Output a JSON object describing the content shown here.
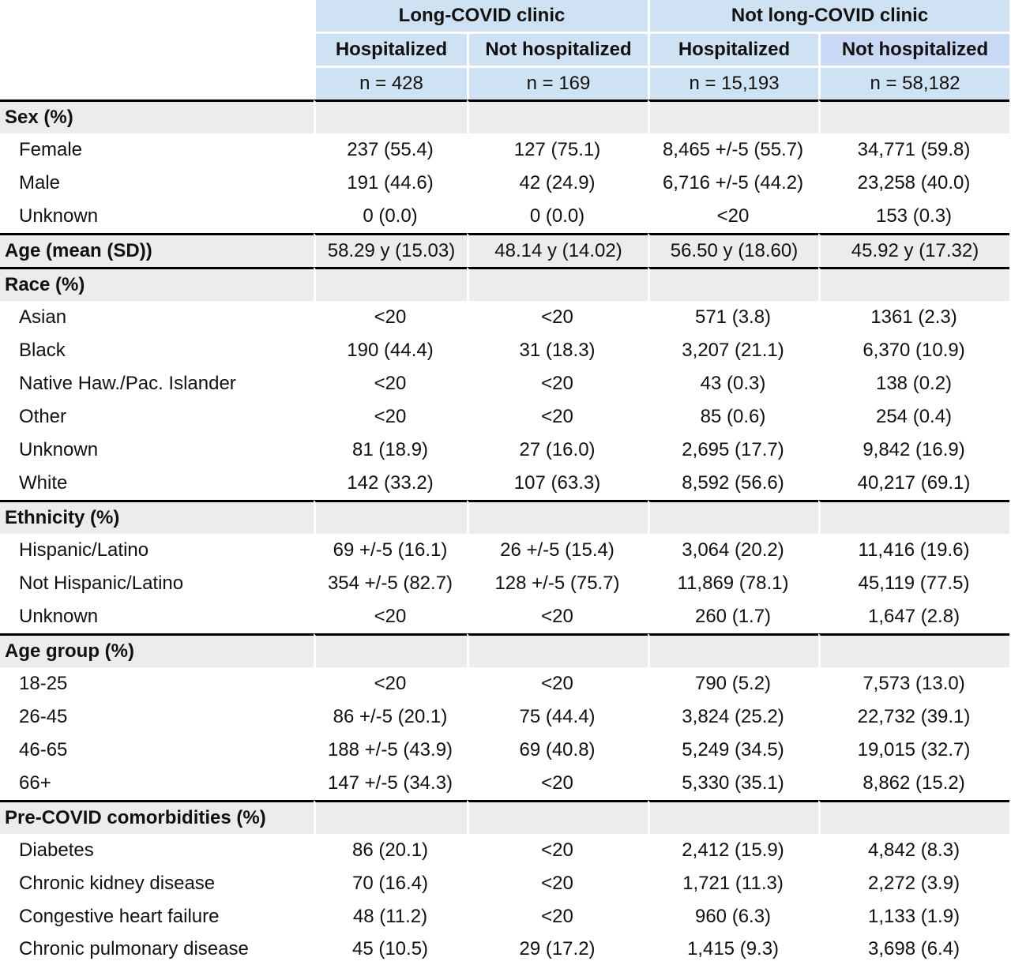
{
  "header": {
    "group_1": "Long-COVID clinic",
    "group_2": "Not long-COVID clinic",
    "sub_1": "Hospitalized",
    "sub_2": "Not hospitalized",
    "sub_3": "Hospitalized",
    "sub_4": "Not hospitalized",
    "n_1": "n = 428",
    "n_2": "n = 169",
    "n_3": "n = 15,193",
    "n_4": "n = 58,182"
  },
  "sex": {
    "title": "Sex (%)",
    "rows": [
      {
        "label": "Female",
        "v1": "237 (55.4)",
        "v2": "127 (75.1)",
        "v3": "8,465 +/-5 (55.7)",
        "v4": "34,771 (59.8)"
      },
      {
        "label": "Male",
        "v1": "191 (44.6)",
        "v2": "42 (24.9)",
        "v3": "6,716 +/-5 (44.2)",
        "v4": "23,258 (40.0)"
      },
      {
        "label": "Unknown",
        "v1": "0 (0.0)",
        "v2": "0 (0.0)",
        "v3": "<20",
        "v4": "153 (0.3)"
      }
    ]
  },
  "age_mean": {
    "title": "Age (mean (SD))",
    "v1": "58.29 y (15.03)",
    "v2": "48.14 y (14.02)",
    "v3": "56.50 y (18.60)",
    "v4": "45.92 y (17.32)"
  },
  "race": {
    "title": "Race (%)",
    "rows": [
      {
        "label": "Asian",
        "v1": "<20",
        "v2": "<20",
        "v3": "571 (3.8)",
        "v4": "1361 (2.3)"
      },
      {
        "label": "Black",
        "v1": "190 (44.4)",
        "v2": "31 (18.3)",
        "v3": "3,207 (21.1)",
        "v4": "6,370 (10.9)"
      },
      {
        "label": "Native Haw./Pac. Islander",
        "v1": "<20",
        "v2": "<20",
        "v3": "43 (0.3)",
        "v4": "138 (0.2)"
      },
      {
        "label": "Other",
        "v1": "<20",
        "v2": "<20",
        "v3": "85 (0.6)",
        "v4": "254 (0.4)"
      },
      {
        "label": "Unknown",
        "v1": "81 (18.9)",
        "v2": "27 (16.0)",
        "v3": "2,695 (17.7)",
        "v4": "9,842 (16.9)"
      },
      {
        "label": "White",
        "v1": "142 (33.2)",
        "v2": "107 (63.3)",
        "v3": "8,592 (56.6)",
        "v4": "40,217 (69.1)"
      }
    ]
  },
  "ethnicity": {
    "title": "Ethnicity (%)",
    "rows": [
      {
        "label": "Hispanic/Latino",
        "v1": "69 +/-5 (16.1)",
        "v2": "26 +/-5 (15.4)",
        "v3": "3,064 (20.2)",
        "v4": "11,416 (19.6)"
      },
      {
        "label": "Not Hispanic/Latino",
        "v1": "354 +/-5 (82.7)",
        "v2": "128 +/-5 (75.7)",
        "v3": "11,869 (78.1)",
        "v4": "45,119 (77.5)"
      },
      {
        "label": "Unknown",
        "v1": "<20",
        "v2": "<20",
        "v3": "260 (1.7)",
        "v4": "1,647 (2.8)"
      }
    ]
  },
  "age_group": {
    "title": "Age group (%)",
    "rows": [
      {
        "label": "18-25",
        "v1": "<20",
        "v2": "<20",
        "v3": "790 (5.2)",
        "v4": "7,573 (13.0)"
      },
      {
        "label": "26-45",
        "v1": "86 +/-5 (20.1)",
        "v2": "75 (44.4)",
        "v3": "3,824 (25.2)",
        "v4": "22,732 (39.1)"
      },
      {
        "label": "46-65",
        "v1": "188 +/-5 (43.9)",
        "v2": "69 (40.8)",
        "v3": "5,249 (34.5)",
        "v4": "19,015 (32.7)"
      },
      {
        "label": "66+",
        "v1": "147 +/-5 (34.3)",
        "v2": "<20",
        "v3": "5,330 (35.1)",
        "v4": "8,862 (15.2)"
      }
    ]
  },
  "comorbidities": {
    "title": "Pre-COVID comorbidities (%)",
    "rows": [
      {
        "label": "Diabetes",
        "v1": "86 (20.1)",
        "v2": "<20",
        "v3": "2,412 (15.9)",
        "v4": "4,842 (8.3)"
      },
      {
        "label": "Chronic kidney disease",
        "v1": "70 (16.4)",
        "v2": "<20",
        "v3": "1,721 (11.3)",
        "v4": "2,272 (3.9)"
      },
      {
        "label": "Congestive heart failure",
        "v1": "48 (11.2)",
        "v2": "<20",
        "v3": "960 (6.3)",
        "v4": "1,133 (1.9)"
      },
      {
        "label": "Chronic pulmonary disease",
        "v1": "45 (10.5)",
        "v2": "29 (17.2)",
        "v3": "1,415 (9.3)",
        "v4": "3,698 (6.4)"
      }
    ]
  }
}
